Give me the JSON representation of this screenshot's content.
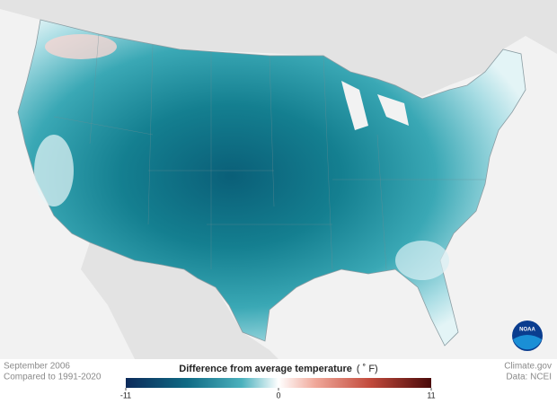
{
  "caption": {
    "date": "September 2006",
    "baseline": "Compared to 1991-2020"
  },
  "legend": {
    "title": "Difference from average temperature",
    "unit": "( ˚ F)",
    "min": -11,
    "max": 11,
    "ticks": [
      -11,
      0,
      11
    ]
  },
  "credits": {
    "source": "Climate.gov",
    "data": "Data: NCEI"
  },
  "logo": {
    "text": "NOAA"
  }
}
